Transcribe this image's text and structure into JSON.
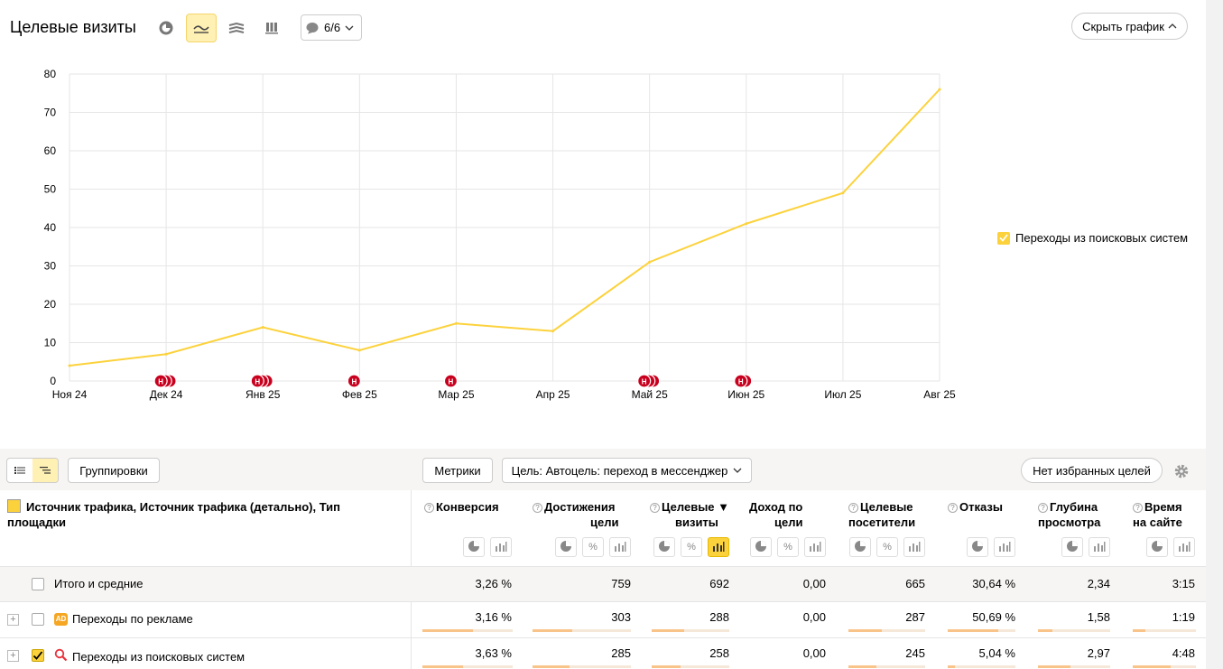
{
  "header": {
    "title": "Целевые визиты",
    "annotations_label": "6/6",
    "hide_chart_label": "Скрыть график"
  },
  "legend": {
    "series_label": "Переходы из поисковых систем"
  },
  "chart_data": {
    "type": "line",
    "x": [
      "Ноя 24",
      "Дек 24",
      "Янв 25",
      "Фев 25",
      "Мар 25",
      "Апр 25",
      "Май 25",
      "Июн 25",
      "Июл 25",
      "Авг 25"
    ],
    "series": [
      {
        "name": "Переходы из поисковых систем",
        "values": [
          4,
          7,
          14,
          8,
          15,
          13,
          31,
          41,
          49,
          76
        ],
        "color": "#fcd23c"
      }
    ],
    "yticks": [
      0,
      10,
      20,
      30,
      40,
      50,
      60,
      70,
      80
    ],
    "ylim": [
      0,
      80
    ],
    "grid": true,
    "legend_position": "right",
    "markers": [
      {
        "x": "Дек 24",
        "label": "Н",
        "count": 3
      },
      {
        "x": "Янв 25",
        "label": "Н",
        "count": 3
      },
      {
        "x": "Фев 25",
        "label": "Н",
        "count": 1
      },
      {
        "x": "Мар 25",
        "label": "Н",
        "count": 1
      },
      {
        "x": "Май 25",
        "label": "Н",
        "count": 3
      },
      {
        "x": "Июн 25",
        "label": "Н",
        "count": 2
      }
    ]
  },
  "toolbar": {
    "groupings_label": "Группировки",
    "metrics_label": "Метрики",
    "goal_label": "Цель: Автоцель: переход в мессенджер",
    "favorites_label": "Нет избранных целей"
  },
  "table": {
    "dimension_header": "Источник трафика, Источник трафика (детально), Тип площадки",
    "columns": [
      {
        "l1": "Конверсия",
        "l2": ""
      },
      {
        "l1": "Достижения",
        "l2": "цели"
      },
      {
        "l1": "Целевые ▼",
        "l2": "визиты"
      },
      {
        "l1": "Доход по",
        "l2": "цели"
      },
      {
        "l1": "Целевые",
        "l2": "посетители"
      },
      {
        "l1": "Отказы",
        "l2": ""
      },
      {
        "l1": "Глубина",
        "l2": "просмотра"
      },
      {
        "l1": "Время",
        "l2": "на сайте"
      }
    ],
    "rows": [
      {
        "label": "Итого и средние",
        "values": [
          "3,26 %",
          "759",
          "692",
          "0,00",
          "665",
          "30,64 %",
          "2,34",
          "3:15"
        ]
      },
      {
        "label": "Переходы по рекламе",
        "values": [
          "3,16 %",
          "303",
          "288",
          "0,00",
          "287",
          "50,69 %",
          "1,58",
          "1:19"
        ],
        "bars": [
          0.56,
          0.4,
          0.42,
          0,
          0.43,
          0.75,
          0.2,
          0.2
        ]
      },
      {
        "label": "Переходы из поисковых систем",
        "values": [
          "3,63 %",
          "285",
          "258",
          "0,00",
          "245",
          "5,04 %",
          "2,97",
          "4:48"
        ],
        "bars": [
          0.45,
          0.38,
          0.37,
          0,
          0.37,
          0.1,
          0.45,
          0.6
        ]
      }
    ]
  }
}
